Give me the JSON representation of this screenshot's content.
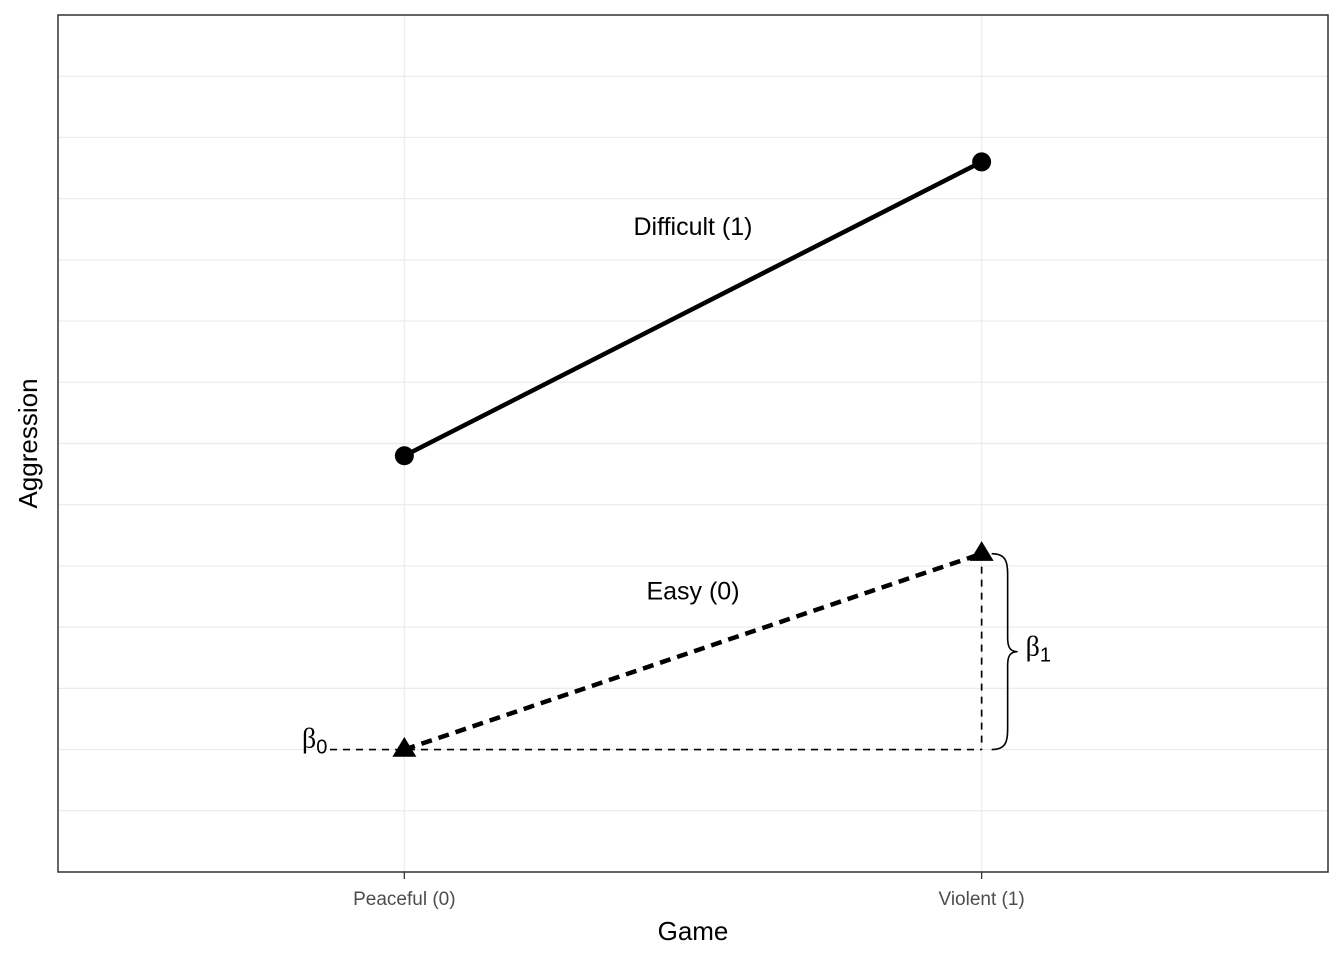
{
  "chart_data": {
    "type": "line",
    "xlabel": "Game",
    "ylabel": "Aggression",
    "categories": [
      "Peaceful (0)",
      "Violent (1)"
    ],
    "x": [
      0,
      1
    ],
    "xlim": [
      -0.6,
      1.6
    ],
    "ylim": [
      0.5,
      4.0
    ],
    "grid": true,
    "series": [
      {
        "name": "Difficult (1)",
        "values": [
          2.2,
          3.4
        ],
        "marker": "circle",
        "linestyle": "solid"
      },
      {
        "name": "Easy (0)",
        "values": [
          1.0,
          1.8
        ],
        "marker": "triangle",
        "linestyle": "dashed"
      }
    ],
    "annotations": {
      "beta0": {
        "symbol": "β",
        "subscript": "0"
      },
      "beta1": {
        "symbol": "β",
        "subscript": "1"
      }
    },
    "colors": {
      "line": "#000000",
      "grid": "#ebebeb",
      "border": "#333333",
      "tick_text": "#4d4d4d"
    }
  }
}
